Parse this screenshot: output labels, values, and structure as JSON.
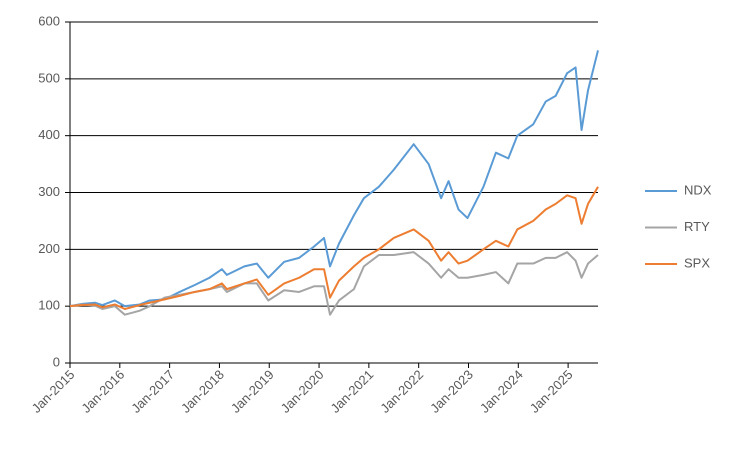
{
  "chart_data": {
    "type": "line",
    "x": [
      2015.0,
      2015.25,
      2015.5,
      2015.65,
      2015.9,
      2016.1,
      2016.4,
      2016.6,
      2016.9,
      2017.2,
      2017.5,
      2017.8,
      2018.05,
      2018.15,
      2018.5,
      2018.75,
      2018.98,
      2019.3,
      2019.6,
      2019.9,
      2020.1,
      2020.22,
      2020.4,
      2020.7,
      2020.9,
      2021.2,
      2021.5,
      2021.9,
      2022.2,
      2022.45,
      2022.6,
      2022.8,
      2022.98,
      2023.3,
      2023.55,
      2023.8,
      2023.98,
      2024.3,
      2024.55,
      2024.75,
      2024.98,
      2025.15,
      2025.27,
      2025.4,
      2025.6
    ],
    "series": [
      {
        "name": "NDX",
        "color": "#5b9bd5",
        "values": [
          100,
          104,
          106,
          102,
          110,
          100,
          103,
          110,
          112,
          125,
          137,
          150,
          165,
          155,
          170,
          175,
          150,
          178,
          185,
          205,
          220,
          170,
          210,
          260,
          290,
          310,
          340,
          385,
          350,
          290,
          320,
          270,
          255,
          310,
          370,
          360,
          400,
          420,
          460,
          470,
          510,
          520,
          410,
          480,
          550
        ]
      },
      {
        "name": "RTY",
        "color": "#a5a5a5",
        "values": [
          100,
          103,
          101,
          95,
          100,
          85,
          92,
          100,
          115,
          120,
          125,
          130,
          135,
          125,
          140,
          140,
          110,
          128,
          125,
          135,
          135,
          85,
          110,
          130,
          170,
          190,
          190,
          195,
          175,
          150,
          165,
          150,
          150,
          155,
          160,
          140,
          175,
          175,
          185,
          185,
          195,
          180,
          150,
          175,
          190
        ]
      },
      {
        "name": "SPX",
        "color": "#ed7d31",
        "values": [
          100,
          102,
          103,
          98,
          103,
          95,
          102,
          106,
          112,
          118,
          125,
          130,
          140,
          130,
          140,
          147,
          120,
          140,
          150,
          165,
          165,
          115,
          145,
          170,
          185,
          200,
          220,
          235,
          215,
          180,
          195,
          175,
          180,
          200,
          215,
          205,
          235,
          250,
          270,
          280,
          295,
          290,
          245,
          280,
          310
        ]
      }
    ],
    "xlim": [
      2015,
      2025.6
    ],
    "xticks": [
      {
        "value": 2015,
        "label": "Jan-2015"
      },
      {
        "value": 2016,
        "label": "Jan-2016"
      },
      {
        "value": 2017,
        "label": "Jan-2017"
      },
      {
        "value": 2018,
        "label": "Jan-2018"
      },
      {
        "value": 2019,
        "label": "Jan-2019"
      },
      {
        "value": 2020,
        "label": "Jan-2020"
      },
      {
        "value": 2021,
        "label": "Jan-2021"
      },
      {
        "value": 2022,
        "label": "Jan-2022"
      },
      {
        "value": 2023,
        "label": "Jan-2023"
      },
      {
        "value": 2024,
        "label": "Jan-2024"
      },
      {
        "value": 2025,
        "label": "Jan-2025"
      }
    ],
    "ylim": [
      0,
      600
    ],
    "yticks": [
      0,
      100,
      200,
      300,
      400,
      500,
      600
    ],
    "grid": true,
    "legend": "right"
  }
}
